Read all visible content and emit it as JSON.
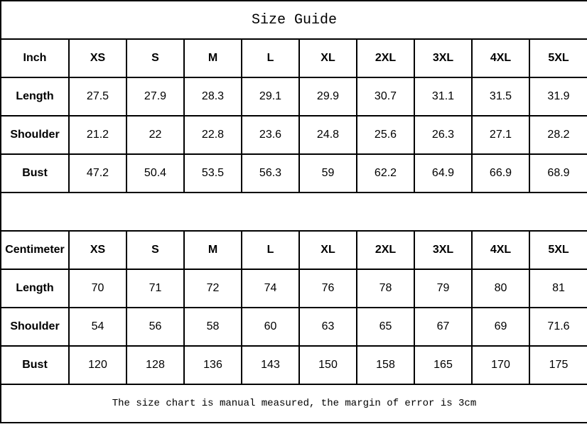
{
  "title": "Size Guide",
  "sizes": [
    "XS",
    "S",
    "M",
    "L",
    "XL",
    "2XL",
    "3XL",
    "4XL",
    "5XL"
  ],
  "tables": [
    {
      "unit": "Inch",
      "rows": [
        {
          "label": "Length",
          "values": [
            "27.5",
            "27.9",
            "28.3",
            "29.1",
            "29.9",
            "30.7",
            "31.1",
            "31.5",
            "31.9"
          ]
        },
        {
          "label": "Shoulder",
          "values": [
            "21.2",
            "22",
            "22.8",
            "23.6",
            "24.8",
            "25.6",
            "26.3",
            "27.1",
            "28.2"
          ]
        },
        {
          "label": "Bust",
          "values": [
            "47.2",
            "50.4",
            "53.5",
            "56.3",
            "59",
            "62.2",
            "64.9",
            "66.9",
            "68.9"
          ]
        }
      ]
    },
    {
      "unit": "Centimeter",
      "rows": [
        {
          "label": "Length",
          "values": [
            "70",
            "71",
            "72",
            "74",
            "76",
            "78",
            "79",
            "80",
            "81"
          ]
        },
        {
          "label": "Shoulder",
          "values": [
            "54",
            "56",
            "58",
            "60",
            "63",
            "65",
            "67",
            "69",
            "71.6"
          ]
        },
        {
          "label": "Bust",
          "values": [
            "120",
            "128",
            "136",
            "143",
            "150",
            "158",
            "165",
            "170",
            "175"
          ]
        }
      ]
    }
  ],
  "note": "The size chart is manual measured, the margin of error is 3cm"
}
